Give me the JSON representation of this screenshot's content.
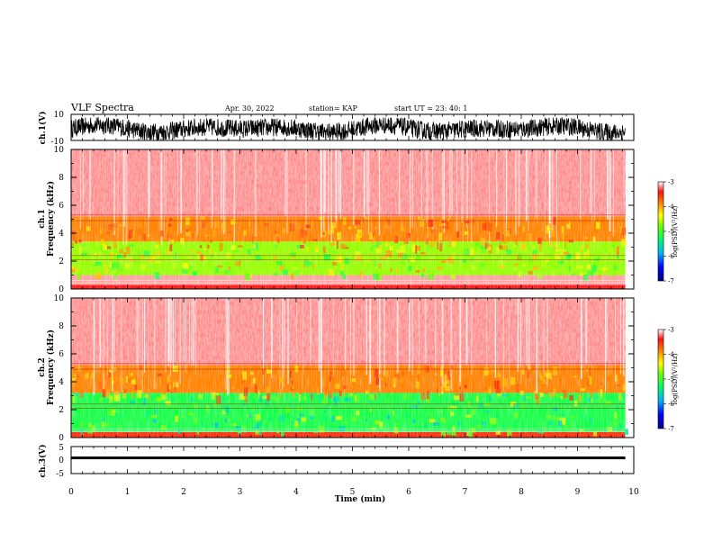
{
  "header": {
    "title": "VLF Spectra",
    "date": "Apr. 30, 2022",
    "station": "station= KAP",
    "start": "start  UT  =   23: 40: 1"
  },
  "chart_data": [
    {
      "type": "line",
      "panel": "ch1-waveform",
      "ylabel": "ch.1(V)",
      "ylim": [
        -10,
        10
      ],
      "ytick_labels": [
        "10",
        "-10"
      ],
      "xlim": [
        0,
        10
      ],
      "note_series": "dense black waveform filling most of the range, roughly between -9 and 7 V"
    },
    {
      "type": "heatmap",
      "panel": "ch1-spectrogram",
      "ylabel": "ch.1\nFrequency (kHz)",
      "ylabel_line1": "ch.1",
      "ylabel_line2": "Frequency  (kHz)",
      "ylim": [
        0,
        10
      ],
      "yticks": [
        0,
        2,
        4,
        6,
        8,
        10
      ],
      "xlim": [
        0,
        10
      ],
      "data_end_min": 9.85,
      "colorbar": {
        "label": "log(PSD)(V²/Hz)",
        "range": [
          -7,
          -3
        ],
        "ticks": [
          "-3",
          "-4",
          "-5",
          "-6",
          "-7"
        ]
      },
      "bands_khz": [
        {
          "from": 0,
          "to": 0.3,
          "level": -3.5
        },
        {
          "from": 0.3,
          "to": 1.0,
          "level": -3.2
        },
        {
          "from": 1.0,
          "to": 3.4,
          "level": -4.7
        },
        {
          "from": 3.4,
          "to": 5.2,
          "level": -3.9
        },
        {
          "from": 5.2,
          "to": 10,
          "level": -3.2
        }
      ]
    },
    {
      "type": "heatmap",
      "panel": "ch2-spectrogram",
      "ylabel_line1": "ch.2",
      "ylabel_line2": "Frequency  (kHz)",
      "ylim": [
        0,
        10
      ],
      "yticks": [
        0,
        2,
        4,
        6,
        8,
        10
      ],
      "xlim": [
        0,
        10
      ],
      "data_end_min": 9.85,
      "colorbar": {
        "label": "log(PSD)(V²/Hz)",
        "range": [
          -7,
          -3
        ],
        "ticks": [
          "-3",
          "-4",
          "-5",
          "-6",
          "-7"
        ]
      },
      "bands_khz": [
        {
          "from": 0,
          "to": 0.4,
          "level": -3.6
        },
        {
          "from": 0.4,
          "to": 3.2,
          "level": -5.2
        },
        {
          "from": 3.2,
          "to": 5.2,
          "level": -3.9
        },
        {
          "from": 5.2,
          "to": 10,
          "level": -3.2
        }
      ]
    },
    {
      "type": "line",
      "panel": "ch3-waveform",
      "ylabel": "ch.3(V)",
      "ylim": [
        -5,
        5
      ],
      "ytick_labels": [
        "5",
        "0",
        "-5"
      ],
      "xlim": [
        0,
        10
      ],
      "xticks": [
        0,
        1,
        2,
        3,
        4,
        5,
        6,
        7,
        8,
        9,
        10
      ],
      "xlabel": "Time (min)",
      "band_level_V": 0.8,
      "band_width_V": 1.0
    }
  ]
}
